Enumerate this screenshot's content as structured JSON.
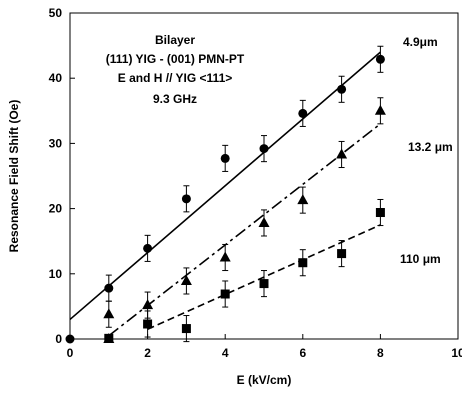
{
  "chart_data": {
    "type": "scatter",
    "xlabel": "E (kV/cm)",
    "ylabel": "Resonance Field Shift (Oe)",
    "xlim": [
      0,
      10
    ],
    "ylim": [
      0,
      50
    ],
    "xticks": [
      "0",
      "2",
      "4",
      "6",
      "8",
      "10"
    ],
    "yticks": [
      "0",
      "10",
      "20",
      "30",
      "40",
      "50"
    ],
    "grid": false,
    "annotation_lines": [
      "Bilayer",
      "(111) YIG - (001) PMN-PT",
      "E and H // YIG <111>",
      "9.3 GHz"
    ],
    "series": [
      {
        "label": "4.9μm",
        "marker": "circle",
        "line": "solid",
        "x": [
          0,
          1,
          2,
          3,
          4,
          5,
          6,
          7,
          8
        ],
        "y": [
          0,
          7.8,
          13.9,
          21.5,
          27.7,
          29.2,
          34.6,
          38.3,
          42.9
        ],
        "err": [
          0,
          2,
          2,
          2,
          2,
          2,
          2,
          2,
          2
        ],
        "fit": [
          [
            0,
            3.0
          ],
          [
            8,
            44.0
          ]
        ]
      },
      {
        "label": "13.2 μm",
        "marker": "triangle",
        "line": "dash-dot",
        "x": [
          1,
          2,
          3,
          4,
          5,
          6,
          7,
          8
        ],
        "y": [
          3.8,
          5.2,
          8.9,
          12.5,
          17.8,
          21.3,
          28.3,
          35.0
        ],
        "err": [
          2,
          2,
          2,
          2,
          2,
          2,
          2,
          2
        ],
        "fit": [
          [
            1,
            0.5
          ],
          [
            8,
            33.0
          ]
        ]
      },
      {
        "label": "110 μm",
        "marker": "square",
        "line": "dashed",
        "x": [
          1,
          2,
          3,
          4,
          5,
          6,
          7,
          8
        ],
        "y": [
          0.1,
          2.3,
          1.6,
          6.9,
          8.5,
          11.7,
          13.1,
          19.4
        ],
        "err": [
          0,
          2,
          2,
          2,
          2,
          2,
          2,
          2
        ],
        "fit": [
          [
            2,
            1.5
          ],
          [
            8,
            17.5
          ]
        ]
      }
    ],
    "extra_points": [
      {
        "x": 1,
        "y": 0,
        "marker": "triangle"
      }
    ]
  }
}
